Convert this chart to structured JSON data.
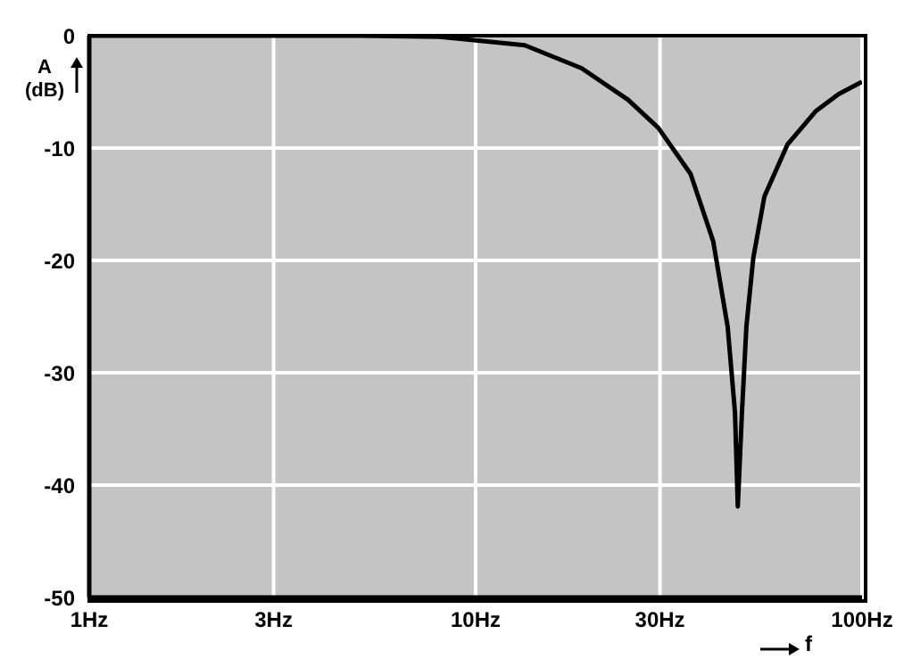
{
  "chart_data": {
    "type": "line",
    "xlabel": "f",
    "ylabel": "A (dB)",
    "x": [
      1,
      3,
      5,
      8.07,
      13.4,
      18.8,
      24.8,
      29.7,
      36,
      41.2,
      44.9,
      46.9,
      47.7,
      48.9,
      50.2,
      52.3,
      55.9,
      64.1,
      76,
      87,
      100
    ],
    "series": [
      {
        "color": "#000000",
        "values": [
          0,
          0,
          0,
          -0.1,
          -0.85,
          -2.9,
          -5.7,
          -8.2,
          -12.3,
          -18.3,
          -25.9,
          -33.5,
          -41.9,
          -33.5,
          -25.9,
          -19.8,
          -14.3,
          -9.7,
          -6.7,
          -5.2,
          -4.1
        ]
      }
    ],
    "log": "x",
    "xlim": [
      1,
      100
    ],
    "ylim": [
      -50,
      0
    ],
    "xticks": [
      {
        "value": 1,
        "label": "1Hz"
      },
      {
        "value": 3,
        "label": "3Hz"
      },
      {
        "value": 10,
        "label": "10Hz"
      },
      {
        "value": 30,
        "label": "30Hz"
      },
      {
        "value": 100,
        "label": "100Hz"
      }
    ],
    "yticks": [
      -50,
      -40,
      -30,
      -20,
      -10,
      0
    ],
    "grid": true,
    "marker": "none",
    "line_style": "solid"
  }
}
